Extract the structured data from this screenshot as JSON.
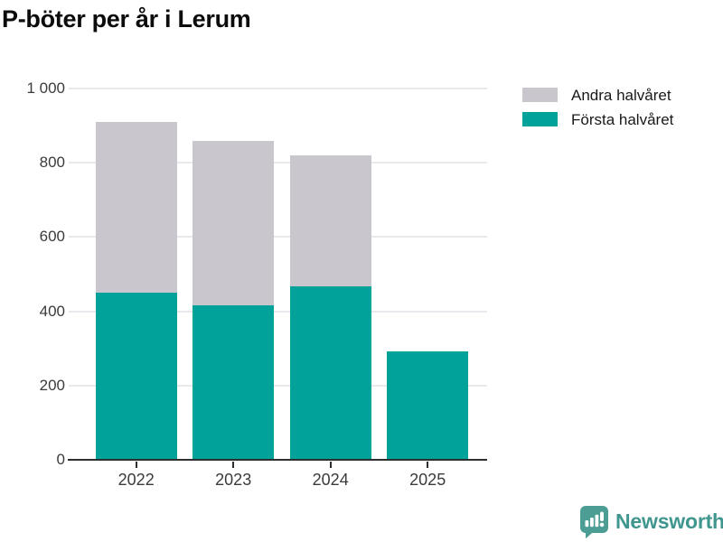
{
  "page": {
    "title": "P-böter per år i Lerum"
  },
  "legend": {
    "items": [
      {
        "label": "Andra halvåret",
        "color": "#c9c6ce"
      },
      {
        "label": "Första halvåret",
        "color": "#00a29a"
      }
    ]
  },
  "chart_data": {
    "type": "bar",
    "stacked": true,
    "title": "P-böter per år i Lerum",
    "categories": [
      "2022",
      "2023",
      "2024",
      "2025"
    ],
    "series": [
      {
        "name": "Första halvåret",
        "color": "#00a29a",
        "values": [
          450,
          415,
          468,
          293
        ]
      },
      {
        "name": "Andra halvåret",
        "color": "#c9c6ce",
        "values": [
          460,
          445,
          352,
          0
        ]
      }
    ],
    "totals": [
      910,
      860,
      820,
      293
    ],
    "xlabel": "",
    "ylabel": "",
    "ylim": [
      0,
      1000
    ],
    "yticks": {
      "values": [
        1000,
        800,
        600,
        400,
        200,
        0
      ],
      "labels": [
        "1 000",
        "800",
        "600",
        "400",
        "200",
        "0"
      ]
    },
    "grid": "horizontal",
    "legend_position": "top-right",
    "colors": {
      "grid": "#e9e8ec",
      "axis": "#2e2e2e",
      "tick_label": "#3b3b3b"
    }
  },
  "footer": {
    "brand": "Newsworthy",
    "logo_icon": "newsworthy-speech-bubble-chart-icon",
    "brand_color": "#3f968e",
    "logo_fill": "#4c9d94"
  }
}
